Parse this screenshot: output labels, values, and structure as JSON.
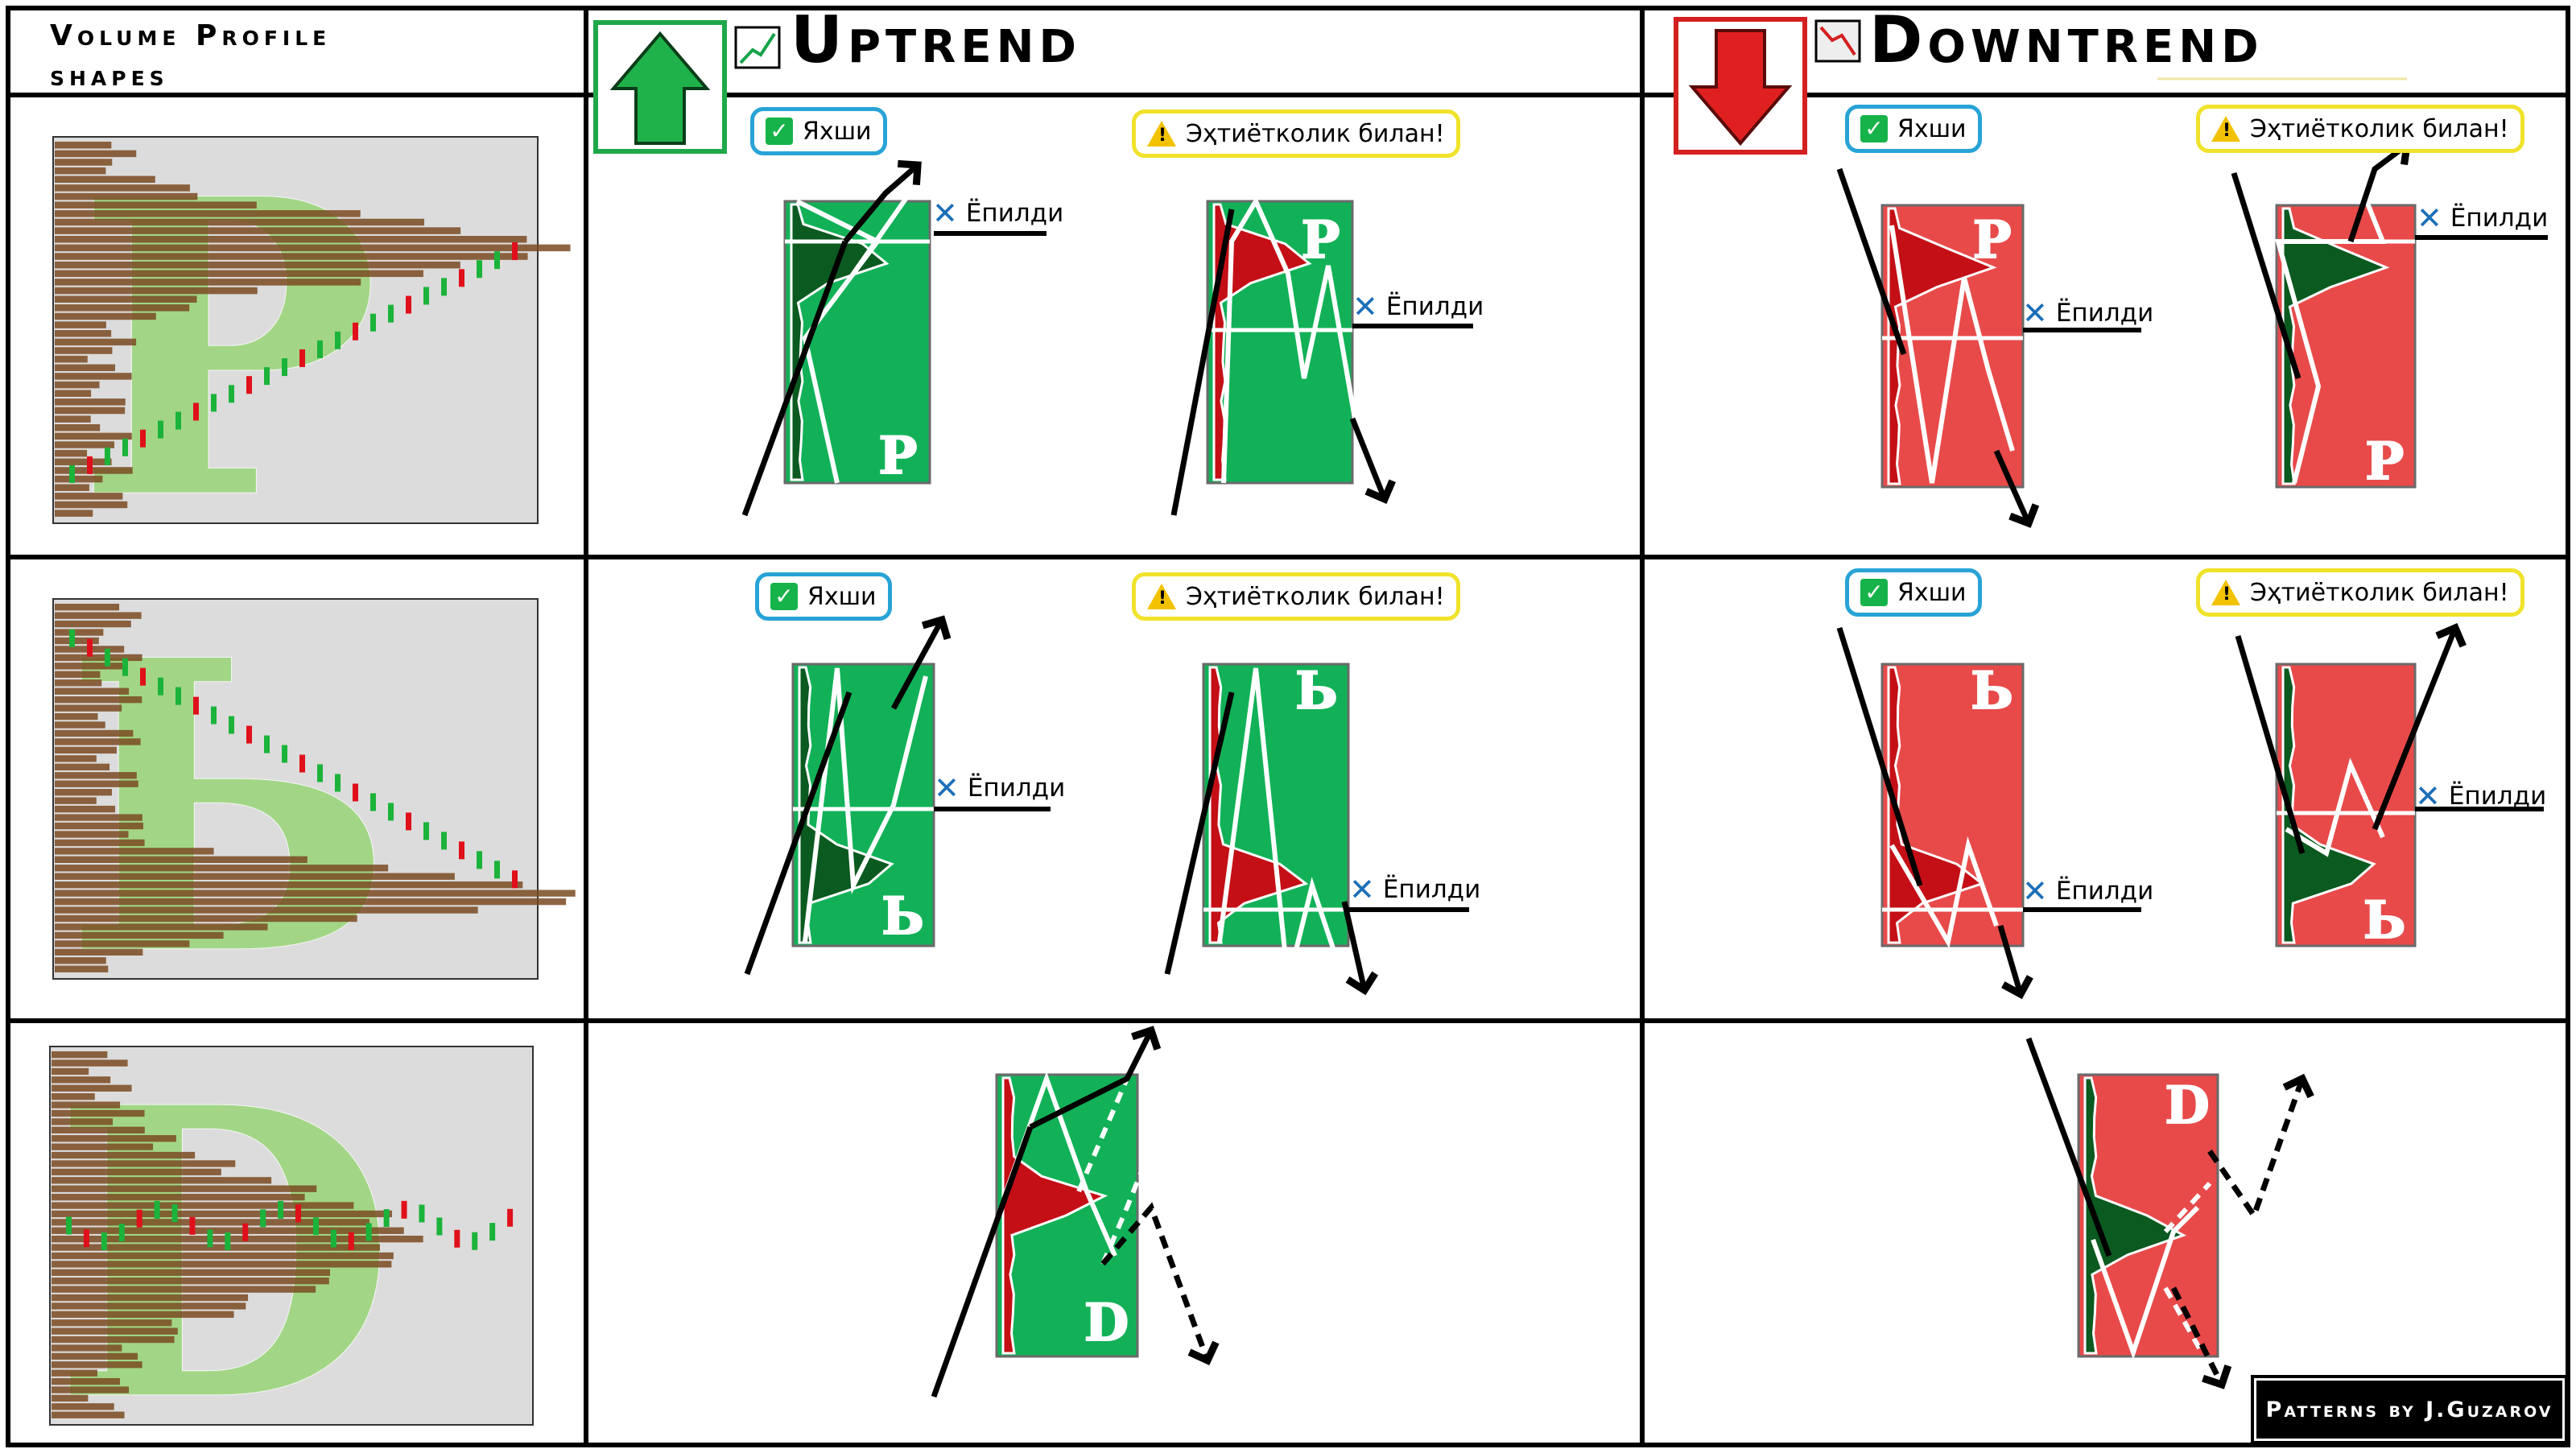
{
  "header": {
    "left_title_line1": "Volume Profile",
    "left_title_line2": "shapes",
    "uptrend_title": "Uptrend",
    "downtrend_title": "Downtrend"
  },
  "labels": {
    "good": "Яхши",
    "careful": "Эҳтиётколик билан!",
    "broken": "Ёпилди"
  },
  "shapes": {
    "p": "P",
    "b": "Ь",
    "d": "D"
  },
  "footer": {
    "credit": "Patterns by J.Guzarov"
  },
  "colors": {
    "green": "#12b158",
    "green_dark": "#0b5a20",
    "red_box": "#e84a4a",
    "red_dark": "#c40f16",
    "arrow_green": "#1fb24a",
    "arrow_red": "#e02020",
    "shape_green": "#8fd46a",
    "profile_brown": "#7a4a22"
  }
}
